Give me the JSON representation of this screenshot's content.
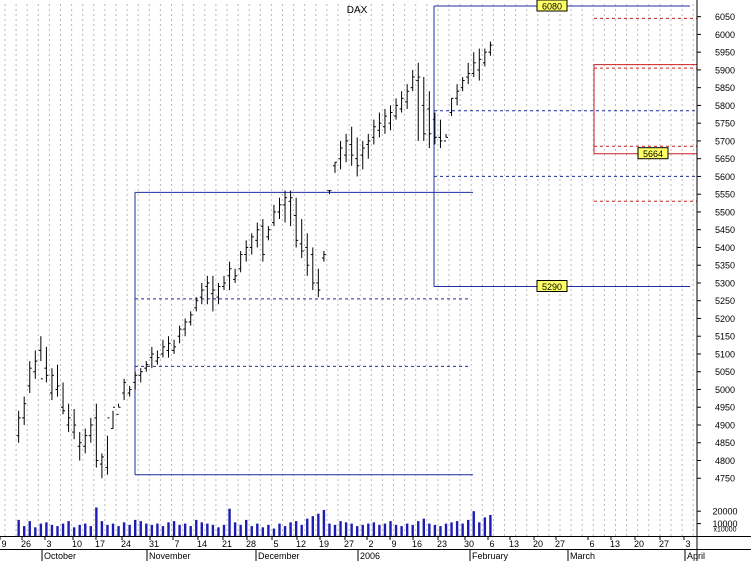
{
  "chart_data": {
    "type": "ohlc",
    "title": "DAX",
    "y_axis": {
      "position": "right",
      "range": [
        4700,
        6080
      ],
      "ticks": [
        4750,
        4800,
        4850,
        4900,
        4950,
        5000,
        5050,
        5100,
        5150,
        5200,
        5250,
        5300,
        5350,
        5400,
        5450,
        5500,
        5550,
        5600,
        5650,
        5700,
        5750,
        5800,
        5850,
        5900,
        5950,
        6000,
        6050
      ]
    },
    "volume_axis": {
      "ticks": [
        {
          "label": "20000",
          "value": 20000
        },
        {
          "label": "10000",
          "value": 10000
        }
      ],
      "multiplier_label": "x10000"
    },
    "x_axis": {
      "day_labels": [
        "9",
        "26",
        "3",
        "10",
        "17",
        "24",
        "31",
        "7",
        "14",
        "21",
        "28",
        "5",
        "12",
        "19",
        "27",
        "2",
        "9",
        "16",
        "23",
        "30",
        "6",
        "13",
        "20",
        "27",
        "6",
        "13",
        "20",
        "27",
        "3"
      ],
      "month_labels": [
        "October",
        "November",
        "December",
        "2006",
        "February",
        "March",
        "April"
      ]
    },
    "price_series": {
      "start_day": 3,
      "highs": [
        4940,
        4980,
        5080,
        5110,
        5150,
        5120,
        5060,
        5070,
        5020,
        4960,
        4945,
        4880,
        4890,
        4920,
        4960,
        4820,
        4760,
        4940,
        4960,
        5030,
        5010,
        5050,
        5060,
        5080,
        5120,
        5110,
        5140,
        5150,
        5140,
        5180,
        5200,
        5220,
        5260,
        5300,
        5320,
        5320,
        5300,
        5320,
        5360,
        5340,
        5390,
        5420,
        5440,
        5470,
        5480,
        5460,
        5520,
        5540,
        5560,
        5560,
        5540,
        5480,
        5440,
        5400,
        5340,
        5390,
        5560,
        5640,
        5700,
        5720,
        5740,
        5710,
        5700,
        5720,
        5760,
        5780,
        5790,
        5800,
        5820,
        5840,
        5860,
        5900,
        5920,
        5880,
        5840,
        5780,
        5760,
        5720,
        5820,
        5860,
        5880,
        5920,
        5950,
        5960,
        5960,
        5980
      ],
      "lows": [
        4850,
        4900,
        4990,
        5030,
        5080,
        5020,
        4970,
        4980,
        4930,
        4880,
        4860,
        4800,
        4820,
        4850,
        4780,
        4750,
        4870,
        4890,
        4950,
        4970,
        4980,
        5000,
        5020,
        5050,
        5060,
        5070,
        5090,
        5090,
        5100,
        5130,
        5150,
        5180,
        5220,
        5240,
        5240,
        5220,
        5240,
        5280,
        5280,
        5300,
        5330,
        5360,
        5380,
        5400,
        5360,
        5420,
        5460,
        5480,
        5470,
        5460,
        5400,
        5370,
        5320,
        5280,
        5260,
        5360,
        5550,
        5610,
        5620,
        5640,
        5630,
        5600,
        5620,
        5650,
        5690,
        5710,
        5720,
        5730,
        5760,
        5780,
        5790,
        5840,
        5700,
        5700,
        5680,
        5690,
        5680,
        5710,
        5770,
        5800,
        5840,
        5860,
        5880,
        5870,
        5910,
        5940
      ],
      "opens": [
        4870,
        4920,
        5010,
        5050,
        5110,
        5060,
        4990,
        5000,
        4950,
        4900,
        4880,
        4840,
        4840,
        4870,
        4920,
        4790,
        4780,
        4890,
        4930,
        4990,
        4990,
        5020,
        5040,
        5060,
        5090,
        5080,
        5100,
        5110,
        5110,
        5150,
        5170,
        5190,
        5230,
        5260,
        5290,
        5270,
        5260,
        5290,
        5320,
        5310,
        5340,
        5380,
        5400,
        5420,
        5460,
        5430,
        5470,
        5500,
        5520,
        5530,
        5490,
        5410,
        5400,
        5380,
        5300,
        5370,
        5560,
        5630,
        5650,
        5660,
        5690,
        5650,
        5660,
        5690,
        5710,
        5730,
        5740,
        5750,
        5770,
        5790,
        5810,
        5850,
        5870,
        5800,
        5790,
        5760,
        5710,
        5700,
        5780,
        5820,
        5850,
        5880,
        5890,
        5900,
        5920,
        5950
      ],
      "closes": [
        4920,
        4960,
        5060,
        5080,
        5030,
        5040,
        5040,
        5010,
        4940,
        4920,
        4900,
        4850,
        4870,
        4900,
        4800,
        4810,
        4920,
        4950,
        4950,
        5020,
        5000,
        5040,
        5050,
        5070,
        5100,
        5090,
        5120,
        5130,
        5120,
        5170,
        5190,
        5210,
        5250,
        5280,
        5300,
        5280,
        5290,
        5300,
        5340,
        5320,
        5380,
        5400,
        5430,
        5450,
        5380,
        5450,
        5500,
        5520,
        5540,
        5540,
        5420,
        5390,
        5350,
        5300,
        5280,
        5380,
        5560,
        5640,
        5680,
        5700,
        5660,
        5630,
        5680,
        5700,
        5740,
        5750,
        5770,
        5780,
        5800,
        5820,
        5840,
        5880,
        5880,
        5720,
        5720,
        5710,
        5700,
        5710,
        5820,
        5840,
        5870,
        5890,
        5920,
        5930,
        5950,
        5970
      ]
    },
    "volume": [
      13000,
      8000,
      12000,
      7000,
      10000,
      11000,
      9000,
      8000,
      10000,
      12000,
      7000,
      9000,
      10000,
      8000,
      23000,
      12000,
      9000,
      10000,
      8000,
      11000,
      9000,
      13000,
      12000,
      10000,
      9000,
      10000,
      8000,
      11000,
      12000,
      9000,
      10000,
      8000,
      13000,
      11000,
      10000,
      9000,
      7000,
      9000,
      22000,
      11000,
      9000,
      13000,
      8000,
      10000,
      7000,
      9000,
      6000,
      10000,
      8000,
      11000,
      12000,
      9000,
      14000,
      16000,
      18000,
      21000,
      10000,
      9000,
      12000,
      11000,
      10000,
      8000,
      9000,
      10000,
      11000,
      9000,
      10000,
      12000,
      9000,
      8000,
      10000,
      9000,
      12000,
      14000,
      10000,
      9000,
      8000,
      10000,
      11000,
      12000,
      10000,
      13000,
      20000,
      11000,
      15000,
      17000
    ],
    "annotations": {
      "boxes": [
        {
          "color": "#1f2fa0",
          "low": 4760,
          "high": 5555,
          "levels": [
            5065,
            5255
          ]
        },
        {
          "color": "#1f2fa0",
          "low": 5290,
          "high": 6080,
          "levels": [
            5600,
            5785
          ],
          "labels": [
            {
              "text": "6080",
              "value": 6080
            },
            {
              "text": "5290",
              "value": 5290
            }
          ]
        },
        {
          "color": "#cc1f1f",
          "low": 5664,
          "high": 5915,
          "levels": [
            5530,
            5685,
            5905,
            6045
          ],
          "labels": [
            {
              "text": "5664",
              "value": 5664
            }
          ]
        }
      ]
    }
  }
}
